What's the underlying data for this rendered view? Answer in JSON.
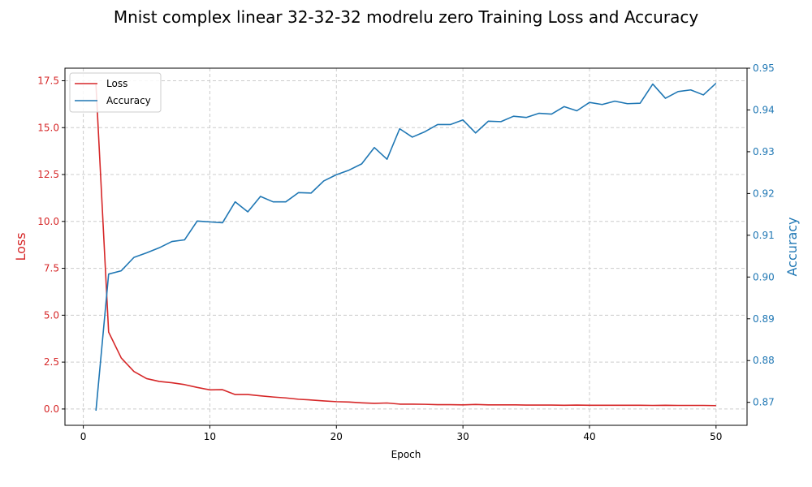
{
  "chart_data": {
    "type": "line",
    "title": "Mnist complex linear 32-32-32 modrelu zero Training Loss and Accuracy",
    "xlabel": "Epoch",
    "ylabel_left": "Loss",
    "ylabel_right": "Accuracy",
    "xlim": [
      -1.45,
      52.45
    ],
    "ylim_left": [
      -0.87,
      18.17
    ],
    "ylim_right": [
      0.8645,
      0.95
    ],
    "x_ticks": [
      "0",
      "10",
      "20",
      "30",
      "40",
      "50"
    ],
    "y_left_ticks": [
      "0.0",
      "2.5",
      "5.0",
      "7.5",
      "10.0",
      "12.5",
      "15.0",
      "17.5"
    ],
    "y_right_ticks": [
      "0.87",
      "0.88",
      "0.89",
      "0.90",
      "0.91",
      "0.92",
      "0.93",
      "0.94",
      "0.95"
    ],
    "grid": true,
    "legend_position": "upper-left",
    "colors": {
      "loss": "#d62728",
      "accuracy": "#1f77b4"
    },
    "x": [
      1,
      2,
      3,
      4,
      5,
      6,
      7,
      8,
      9,
      10,
      11,
      12,
      13,
      14,
      15,
      16,
      17,
      18,
      19,
      20,
      21,
      22,
      23,
      24,
      25,
      26,
      27,
      28,
      29,
      30,
      31,
      32,
      33,
      34,
      35,
      36,
      37,
      38,
      39,
      40,
      41,
      42,
      43,
      44,
      45,
      46,
      47,
      48,
      49,
      50
    ],
    "series": [
      {
        "name": "Loss",
        "axis": "left",
        "values": [
          17.3,
          4.1,
          2.72,
          2.0,
          1.62,
          1.47,
          1.4,
          1.3,
          1.15,
          1.02,
          1.03,
          0.77,
          0.77,
          0.7,
          0.64,
          0.59,
          0.52,
          0.48,
          0.43,
          0.39,
          0.37,
          0.33,
          0.3,
          0.32,
          0.26,
          0.26,
          0.25,
          0.23,
          0.23,
          0.22,
          0.24,
          0.22,
          0.22,
          0.22,
          0.21,
          0.21,
          0.21,
          0.2,
          0.21,
          0.2,
          0.2,
          0.2,
          0.2,
          0.2,
          0.19,
          0.2,
          0.19,
          0.19,
          0.19,
          0.18
        ]
      },
      {
        "name": "Accuracy",
        "axis": "right",
        "values": [
          0.868,
          0.9007,
          0.9015,
          0.9047,
          0.9058,
          0.907,
          0.9085,
          0.9089,
          0.9134,
          0.9132,
          0.913,
          0.918,
          0.9156,
          0.9193,
          0.918,
          0.918,
          0.9202,
          0.9201,
          0.923,
          0.9245,
          0.9256,
          0.9271,
          0.931,
          0.9282,
          0.9355,
          0.9335,
          0.9348,
          0.9365,
          0.9365,
          0.9376,
          0.9345,
          0.9373,
          0.9372,
          0.9385,
          0.9382,
          0.9392,
          0.939,
          0.9408,
          0.9398,
          0.9418,
          0.9413,
          0.9421,
          0.9415,
          0.9416,
          0.9462,
          0.9428,
          0.9444,
          0.9448,
          0.9436,
          0.9464
        ]
      }
    ]
  }
}
